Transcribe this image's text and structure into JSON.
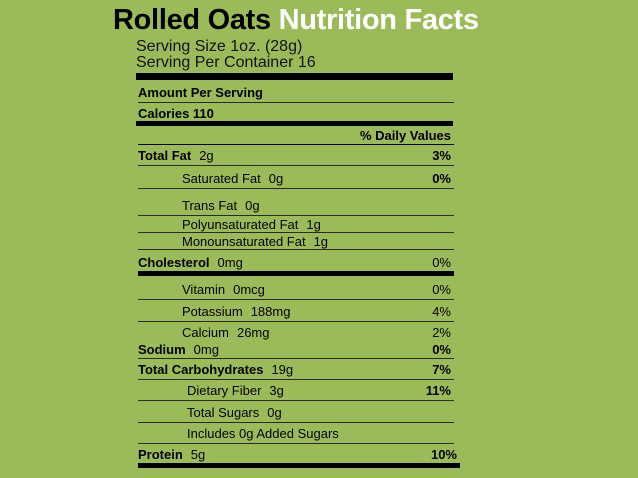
{
  "title": {
    "product": "Rolled Oats",
    "label": "Nutrition Facts"
  },
  "serving": {
    "size": "Serving Size 1oz. (28g)",
    "per_container": "Serving Per Container 16"
  },
  "amount_per_serving": "Amount Per Serving",
  "calories": "Calories 110",
  "daily_values_header": "% Daily Values",
  "rows": {
    "total_fat": {
      "name": "Total Fat",
      "amount": "2g",
      "dv": "3%"
    },
    "saturated_fat": {
      "name": "Saturated Fat",
      "amount": "0g",
      "dv": "0%"
    },
    "trans_fat": {
      "name": "Trans Fat",
      "amount": "0g"
    },
    "polyunsaturated_fat": {
      "name": "Polyunsaturated Fat",
      "amount": "1g"
    },
    "monounsaturated_fat": {
      "name": "Monounsaturated Fat",
      "amount": "1g"
    },
    "cholesterol": {
      "name": "Cholesterol",
      "amount": "0mg",
      "dv": "0%"
    },
    "vitamin": {
      "name": "Vitamin",
      "amount": "0mcg",
      "dv": "0%"
    },
    "potassium": {
      "name": "Potassium",
      "amount": "188mg",
      "dv": "4%"
    },
    "calcium": {
      "name": "Calcium",
      "amount": "26mg",
      "dv": "2%"
    },
    "sodium": {
      "name": "Sodium",
      "amount": "0mg",
      "dv": "0%"
    },
    "total_carbohydrates": {
      "name": "Total Carbohydrates",
      "amount": "19g",
      "dv": "7%"
    },
    "dietary_fiber": {
      "name": "Dietary Fiber",
      "amount": "3g",
      "dv": "11%"
    },
    "total_sugars": {
      "name": "Total Sugars",
      "amount": "0g"
    },
    "added_sugars": {
      "name": "Includes 0g Added Sugars"
    },
    "protein": {
      "name": "Protein",
      "amount": "5g",
      "dv": "10%"
    }
  },
  "colors": {
    "background": "#9bbb59",
    "accent_title": "#ffffff",
    "rule": "#000000"
  }
}
